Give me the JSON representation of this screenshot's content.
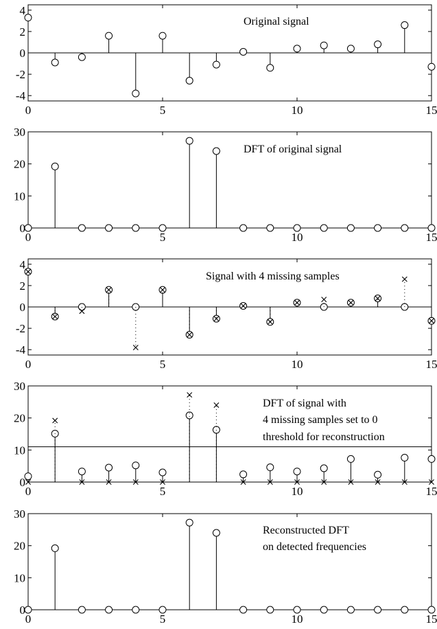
{
  "chart_data": [
    {
      "type": "stem",
      "annotations": [
        "Original signal"
      ],
      "xlim": [
        0,
        15
      ],
      "ylim": [
        -4.5,
        4.5
      ],
      "xticks": [
        0,
        5,
        10,
        15
      ],
      "yticks": [
        -4,
        -2,
        0,
        2,
        4
      ],
      "series": [
        {
          "marker": "o",
          "x": [
            0,
            1,
            2,
            3,
            4,
            5,
            6,
            7,
            8,
            9,
            10,
            11,
            12,
            13,
            14,
            15
          ],
          "values": [
            3.3,
            -0.9,
            -0.4,
            1.6,
            -3.8,
            1.6,
            -2.6,
            -1.1,
            0.1,
            -1.4,
            0.4,
            0.7,
            0.4,
            0.8,
            2.6,
            -1.3
          ]
        }
      ]
    },
    {
      "type": "stem",
      "annotations": [
        "DFT of original signal"
      ],
      "xlim": [
        0,
        15
      ],
      "ylim": [
        0,
        30
      ],
      "xticks": [
        0,
        5,
        10,
        15
      ],
      "yticks": [
        0,
        10,
        20,
        30
      ],
      "series": [
        {
          "marker": "o",
          "x": [
            0,
            1,
            2,
            3,
            4,
            5,
            6,
            7,
            8,
            9,
            10,
            11,
            12,
            13,
            14,
            15
          ],
          "values": [
            0,
            19.2,
            0,
            0,
            0,
            0,
            27.2,
            24.0,
            0,
            0,
            0,
            0,
            0,
            0,
            0,
            0
          ]
        }
      ]
    },
    {
      "type": "stem",
      "annotations": [
        "Signal with 4 missing samples"
      ],
      "xlim": [
        0,
        15
      ],
      "ylim": [
        -4.5,
        4.5
      ],
      "xticks": [
        0,
        5,
        10,
        15
      ],
      "yticks": [
        -4,
        -2,
        0,
        2,
        4
      ],
      "series": [
        {
          "marker": "o",
          "x": [
            0,
            1,
            2,
            3,
            4,
            5,
            6,
            7,
            8,
            9,
            10,
            11,
            12,
            13,
            14,
            15
          ],
          "values": [
            3.3,
            -0.9,
            0,
            1.6,
            0,
            1.6,
            -2.6,
            -1.1,
            0.1,
            -1.4,
            0.4,
            0,
            0.4,
            0.8,
            0,
            -1.3
          ]
        },
        {
          "marker": "x",
          "stem": "dotted",
          "x": [
            0,
            1,
            2,
            3,
            4,
            5,
            6,
            7,
            8,
            9,
            10,
            11,
            12,
            13,
            14,
            15
          ],
          "values": [
            3.3,
            -0.9,
            -0.4,
            1.6,
            -3.8,
            1.6,
            -2.6,
            -1.1,
            0.1,
            -1.4,
            0.4,
            0.7,
            0.4,
            0.8,
            2.6,
            -1.3
          ]
        }
      ]
    },
    {
      "type": "stem",
      "annotations": [
        "DFT of signal with",
        "4 missing samples set to 0",
        "threshold for reconstruction"
      ],
      "xlim": [
        0,
        15
      ],
      "ylim": [
        0,
        30
      ],
      "xticks": [
        0,
        5,
        10,
        15
      ],
      "yticks": [
        0,
        10,
        20,
        30
      ],
      "threshold": 11,
      "series": [
        {
          "marker": "o",
          "x": [
            0,
            1,
            2,
            3,
            4,
            5,
            6,
            7,
            8,
            9,
            10,
            11,
            12,
            13,
            14,
            15
          ],
          "values": [
            1.8,
            15.1,
            3.3,
            4.5,
            5.2,
            3.0,
            20.8,
            16.3,
            2.4,
            4.6,
            3.3,
            4.3,
            7.2,
            2.3,
            7.6,
            7.2
          ]
        },
        {
          "marker": "x",
          "stem": "dotted",
          "x": [
            0,
            1,
            2,
            3,
            4,
            5,
            6,
            7,
            8,
            9,
            10,
            11,
            12,
            13,
            14,
            15
          ],
          "values": [
            0,
            19.2,
            0,
            0,
            0,
            0,
            27.2,
            24.0,
            0,
            0,
            0,
            0,
            0,
            0,
            0,
            0
          ]
        }
      ]
    },
    {
      "type": "stem",
      "annotations": [
        "Reconstructed DFT",
        "on detected frequencies"
      ],
      "xlim": [
        0,
        15
      ],
      "ylim": [
        0,
        30
      ],
      "xticks": [
        0,
        5,
        10,
        15
      ],
      "yticks": [
        0,
        10,
        20,
        30
      ],
      "series": [
        {
          "marker": "o",
          "x": [
            0,
            1,
            2,
            3,
            4,
            5,
            6,
            7,
            8,
            9,
            10,
            11,
            12,
            13,
            14,
            15
          ],
          "values": [
            0,
            19.2,
            0,
            0,
            0,
            0,
            27.2,
            24.0,
            0,
            0,
            0,
            0,
            0,
            0,
            0,
            0
          ]
        }
      ]
    }
  ]
}
